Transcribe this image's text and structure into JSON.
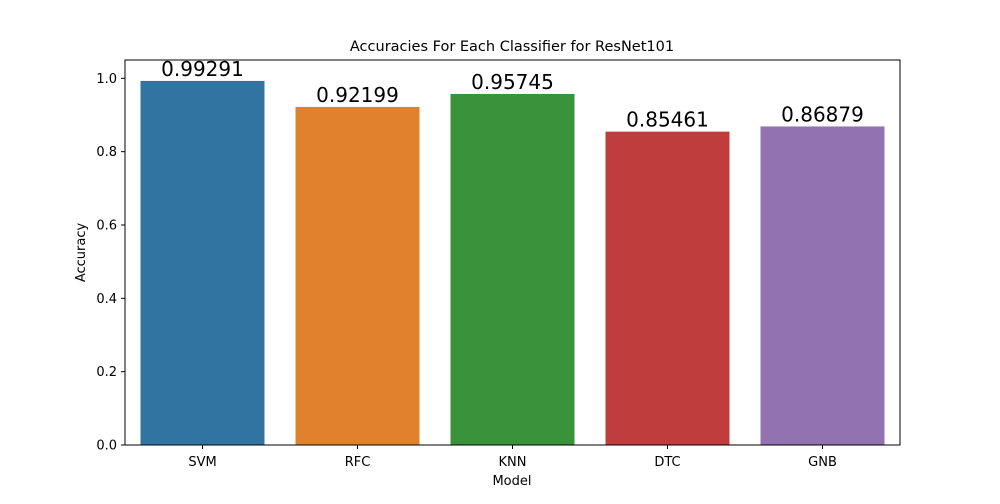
{
  "chart_data": {
    "type": "bar",
    "title": "Accuracies For Each Classifier for ResNet101",
    "xlabel": "Model",
    "ylabel": "Accuracy",
    "categories": [
      "SVM",
      "RFC",
      "KNN",
      "DTC",
      "GNB"
    ],
    "values": [
      0.99291,
      0.92199,
      0.95745,
      0.85461,
      0.86879
    ],
    "value_labels": [
      "0.99291",
      "0.92199",
      "0.95745",
      "0.85461",
      "0.86879"
    ],
    "colors": [
      "#3274a1",
      "#e1812c",
      "#3a923a",
      "#c03d3e",
      "#9372b2"
    ],
    "ylim": [
      0,
      1.05
    ],
    "yticks": [
      0.0,
      0.2,
      0.4,
      0.6,
      0.8,
      1.0
    ],
    "ytick_labels": [
      "0.0",
      "0.2",
      "0.4",
      "0.6",
      "0.8",
      "1.0"
    ],
    "grid": false,
    "legend": "none"
  }
}
